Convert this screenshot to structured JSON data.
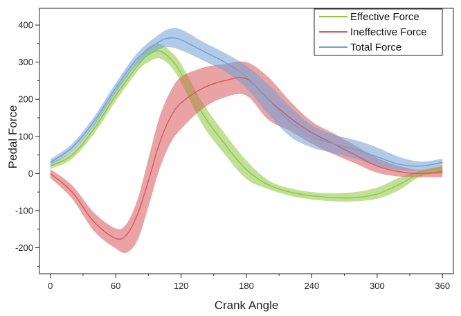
{
  "chart_data": {
    "type": "line",
    "xlabel": "Crank Angle",
    "ylabel": "Pedal Force",
    "xlim": [
      -10,
      370
    ],
    "ylim": [
      -270,
      445
    ],
    "x_ticks": [
      0,
      60,
      120,
      180,
      240,
      300,
      360
    ],
    "y_ticks": [
      -200,
      -100,
      0,
      100,
      200,
      300,
      400
    ],
    "grid": false,
    "legend_position": "top-right",
    "series": [
      {
        "name": "Effective Force",
        "color": "#8dc63f",
        "x": [
          0,
          20,
          40,
          60,
          80,
          90,
          100,
          110,
          120,
          140,
          160,
          180,
          200,
          220,
          240,
          260,
          280,
          300,
          320,
          340,
          360
        ],
        "mean": [
          20,
          50,
          120,
          210,
          290,
          320,
          330,
          310,
          270,
          160,
          80,
          10,
          -30,
          -50,
          -60,
          -65,
          -65,
          -55,
          -30,
          0,
          10
        ],
        "upper": [
          28,
          60,
          133,
          225,
          305,
          340,
          350,
          330,
          295,
          190,
          108,
          35,
          -18,
          -40,
          -50,
          -53,
          -50,
          -38,
          -12,
          8,
          20
        ],
        "lower": [
          12,
          40,
          107,
          195,
          275,
          300,
          310,
          290,
          245,
          130,
          52,
          -15,
          -42,
          -60,
          -70,
          -75,
          -75,
          -68,
          -45,
          -8,
          0
        ]
      },
      {
        "name": "Ineffective Force",
        "color": "#d9575a",
        "x": [
          0,
          20,
          40,
          60,
          70,
          80,
          90,
          100,
          110,
          120,
          140,
          160,
          180,
          200,
          220,
          240,
          260,
          280,
          300,
          320,
          340,
          360
        ],
        "mean": [
          0,
          -50,
          -130,
          -175,
          -165,
          -110,
          -20,
          80,
          150,
          190,
          230,
          250,
          255,
          200,
          150,
          110,
          80,
          50,
          20,
          5,
          0,
          5
        ],
        "upper": [
          12,
          -32,
          -105,
          -148,
          -135,
          -70,
          40,
          150,
          220,
          260,
          285,
          295,
          300,
          260,
          195,
          140,
          108,
          75,
          42,
          20,
          10,
          20
        ],
        "lower": [
          -12,
          -68,
          -155,
          -202,
          -213,
          -180,
          -90,
          10,
          80,
          120,
          175,
          205,
          210,
          145,
          115,
          80,
          52,
          27,
          2,
          -8,
          -10,
          -10
        ]
      },
      {
        "name": "Total Force",
        "color": "#6f9fd6",
        "x": [
          0,
          20,
          40,
          60,
          80,
          100,
          110,
          120,
          140,
          160,
          180,
          200,
          220,
          240,
          260,
          280,
          300,
          320,
          340,
          360
        ],
        "mean": [
          30,
          70,
          140,
          230,
          310,
          355,
          365,
          360,
          330,
          300,
          260,
          200,
          140,
          100,
          80,
          65,
          45,
          25,
          20,
          30
        ],
        "upper": [
          38,
          80,
          152,
          243,
          325,
          375,
          390,
          388,
          355,
          325,
          290,
          240,
          180,
          130,
          105,
          90,
          70,
          45,
          32,
          40
        ],
        "lower": [
          22,
          60,
          128,
          217,
          295,
          335,
          340,
          332,
          305,
          275,
          230,
          160,
          100,
          70,
          55,
          40,
          20,
          10,
          8,
          20
        ]
      }
    ]
  }
}
